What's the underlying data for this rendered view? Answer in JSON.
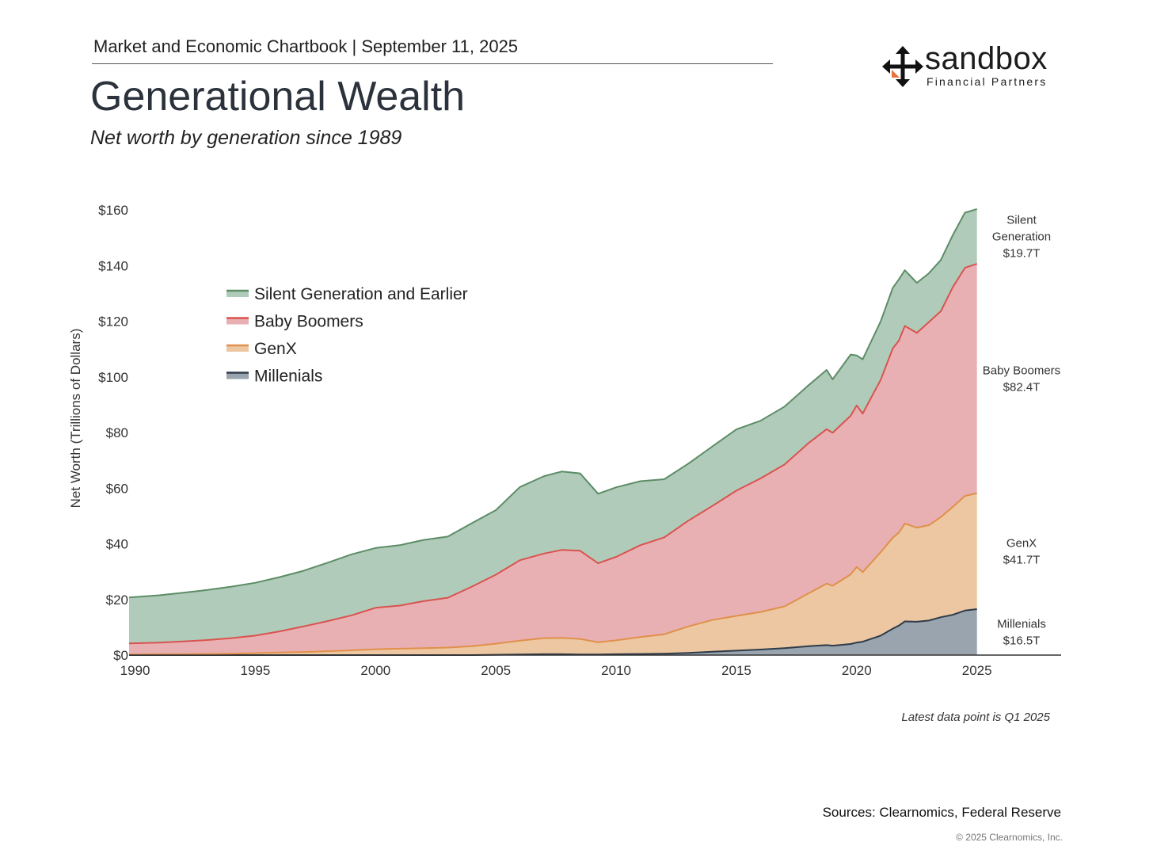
{
  "header": {
    "chartbook_line": "Market and Economic Chartbook | September 11, 2025",
    "brand_name": "sandbox",
    "brand_sub": "Financial Partners"
  },
  "chart_data": {
    "type": "area",
    "stacked": true,
    "title": "Generational Wealth",
    "subtitle": "Net worth by generation since 1989",
    "ylabel": "Net Worth (Trillions of Dollars)",
    "ylim": [
      0,
      160
    ],
    "xlim": [
      1989.75,
      2028.5
    ],
    "yticks": [
      0,
      20,
      40,
      60,
      80,
      100,
      120,
      140,
      160
    ],
    "ytick_labels": [
      "$0",
      "$20",
      "$40",
      "$60",
      "$80",
      "$100",
      "$120",
      "$140",
      "$160"
    ],
    "xticks": [
      1990,
      1995,
      2000,
      2005,
      2010,
      2015,
      2020,
      2025
    ],
    "xtick_labels": [
      "1990",
      "1995",
      "2000",
      "2005",
      "2010",
      "2015",
      "2020",
      "2025"
    ],
    "legend_position": "upper-left",
    "grid": false,
    "x": [
      1989.75,
      1991,
      1992,
      1993,
      1994,
      1995,
      1996,
      1997,
      1998,
      1999,
      2000,
      2001,
      2002,
      2003,
      2004,
      2005,
      2006,
      2007,
      2007.75,
      2008.5,
      2009.25,
      2010,
      2011,
      2012,
      2013,
      2014,
      2015,
      2016,
      2017,
      2018,
      2018.75,
      2019,
      2019.75,
      2020,
      2020.25,
      2021,
      2021.5,
      2021.75,
      2022,
      2022.5,
      2023,
      2023.5,
      2024,
      2024.5,
      2025
    ],
    "series": [
      {
        "name": "Millenials",
        "values": [
          0,
          0,
          0,
          0,
          0,
          0,
          0,
          0,
          0,
          0,
          0,
          0,
          0,
          0,
          0,
          0.1,
          0.2,
          0.3,
          0.3,
          0.2,
          0.2,
          0.3,
          0.4,
          0.5,
          0.8,
          1.2,
          1.6,
          2.0,
          2.5,
          3.2,
          3.6,
          3.4,
          4.0,
          4.5,
          4.8,
          7.0,
          9.5,
          10.6,
          12.1,
          12.0,
          12.4,
          13.6,
          14.5,
          16.0,
          16.5
        ]
      },
      {
        "name": "GenX",
        "values": [
          0.2,
          0.3,
          0.3,
          0.4,
          0.5,
          0.7,
          0.9,
          1.1,
          1.4,
          1.7,
          2.1,
          2.3,
          2.5,
          2.7,
          3.2,
          4.0,
          5.0,
          5.8,
          5.9,
          5.6,
          4.4,
          5.0,
          6.1,
          7.0,
          9.5,
          11.4,
          12.5,
          13.5,
          15.0,
          19.0,
          22.1,
          21.5,
          25.0,
          27.2,
          25.0,
          30.0,
          32.7,
          33.4,
          35.2,
          33.8,
          34.3,
          36.0,
          38.8,
          41.2,
          41.7
        ]
      },
      {
        "name": "Baby Boomers",
        "values": [
          4.0,
          4.2,
          4.6,
          5.0,
          5.6,
          6.3,
          7.6,
          9.2,
          10.8,
          12.6,
          14.9,
          15.5,
          16.9,
          17.9,
          21.4,
          24.8,
          28.9,
          30.4,
          31.6,
          31.7,
          28.4,
          30.0,
          33.0,
          34.8,
          38.0,
          41.0,
          45.0,
          48.0,
          51.0,
          54.0,
          55.5,
          55.0,
          57.0,
          58.0,
          57.0,
          62.0,
          68.0,
          69.0,
          71.0,
          70.0,
          73.0,
          74.0,
          79.0,
          82.0,
          82.4
        ]
      },
      {
        "name": "Silent Generation and Earlier",
        "values": [
          16.5,
          17.0,
          17.5,
          18.0,
          18.5,
          19.0,
          19.5,
          20.0,
          21.0,
          21.9,
          21.5,
          21.7,
          22.0,
          22.0,
          22.8,
          23.2,
          26.3,
          27.8,
          28.2,
          27.8,
          25.0,
          25.0,
          23.0,
          20.9,
          20.5,
          21.4,
          22.0,
          20.7,
          20.8,
          20.8,
          21.3,
          19.2,
          22.0,
          18.0,
          19.5,
          21.0,
          21.8,
          22.0,
          20.0,
          18.0,
          17.5,
          18.4,
          18.7,
          19.8,
          19.7
        ]
      }
    ],
    "end_labels": [
      {
        "series": "Silent Generation and Earlier",
        "lines": [
          "Silent",
          "Generation",
          "$19.7T"
        ]
      },
      {
        "series": "Baby Boomers",
        "lines": [
          "Baby Boomers",
          "$82.4T"
        ]
      },
      {
        "series": "GenX",
        "lines": [
          "GenX",
          "$41.7T"
        ]
      },
      {
        "series": "Millenials",
        "lines": [
          "Millenials",
          "$16.5T"
        ]
      }
    ]
  },
  "colors": {
    "Silent Generation and Earlier": {
      "fill": "#b1cbba",
      "stroke": "#5c8d66"
    },
    "Baby Boomers": {
      "fill": "#e8b0b3",
      "stroke": "#d9534f"
    },
    "GenX": {
      "fill": "#ecc7a1",
      "stroke": "#e0904a"
    },
    "Millenials": {
      "fill": "#99a4ae",
      "stroke": "#2e3b4a"
    },
    "logo_accent": "#e8743b"
  },
  "footer": {
    "note": "Latest data point is Q1 2025",
    "sources": "Sources: Clearnomics, Federal Reserve",
    "copyright": "© 2025 Clearnomics, Inc."
  }
}
